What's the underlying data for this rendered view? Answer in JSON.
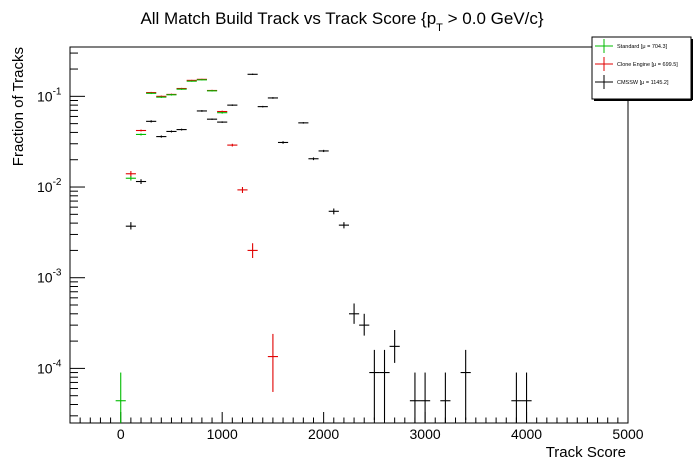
{
  "chart_data": {
    "type": "scatter",
    "title": {
      "main": "All Match Build Track vs Track Score {p",
      "subscript": "T",
      "rest": " > 0.0 GeV/c}"
    },
    "xlabel": "Track Score",
    "ylabel": "Fraction of Tracks",
    "xlim": [
      -500,
      5000
    ],
    "ylim": [
      2.5e-05,
      0.35
    ],
    "y_scale": "log",
    "grid": false,
    "legend_position": "top-right",
    "x_ticks": [
      "0",
      "1000",
      "2000",
      "3000",
      "4000",
      "5000"
    ],
    "y_ticks": [
      {
        "base": "10",
        "exp": "-1",
        "value": 0.1
      },
      {
        "base": "10",
        "exp": "-2",
        "value": 0.01
      },
      {
        "base": "10",
        "exp": "-3",
        "value": 0.001
      },
      {
        "base": "10",
        "exp": "-4",
        "value": 0.0001
      }
    ],
    "x_error": 50,
    "series": [
      {
        "name": "CMSSW",
        "legend": "CMSSW  [μ = 1145.2]",
        "color": "#000000",
        "points": [
          {
            "x": 100,
            "y": 0.0037,
            "lo": 0.0034,
            "hi": 0.0041
          },
          {
            "x": 200,
            "y": 0.0115,
            "lo": 0.0108,
            "hi": 0.0122
          },
          {
            "x": 300,
            "y": 0.053,
            "lo": 0.0515,
            "hi": 0.0545
          },
          {
            "x": 400,
            "y": 0.036,
            "lo": 0.035,
            "hi": 0.037
          },
          {
            "x": 500,
            "y": 0.041,
            "lo": 0.04,
            "hi": 0.042
          },
          {
            "x": 600,
            "y": 0.043,
            "lo": 0.042,
            "hi": 0.044
          },
          {
            "x": 800,
            "y": 0.069,
            "lo": 0.0675,
            "hi": 0.0705
          },
          {
            "x": 900,
            "y": 0.056,
            "lo": 0.055,
            "hi": 0.057
          },
          {
            "x": 1000,
            "y": 0.052,
            "lo": 0.051,
            "hi": 0.053
          },
          {
            "x": 1100,
            "y": 0.08,
            "lo": 0.0785,
            "hi": 0.0815
          },
          {
            "x": 1300,
            "y": 0.175,
            "lo": 0.172,
            "hi": 0.178
          },
          {
            "x": 1400,
            "y": 0.077,
            "lo": 0.0755,
            "hi": 0.0785
          },
          {
            "x": 1500,
            "y": 0.096,
            "lo": 0.094,
            "hi": 0.098
          },
          {
            "x": 1600,
            "y": 0.031,
            "lo": 0.03,
            "hi": 0.032
          },
          {
            "x": 1800,
            "y": 0.051,
            "lo": 0.05,
            "hi": 0.052
          },
          {
            "x": 1900,
            "y": 0.0205,
            "lo": 0.0198,
            "hi": 0.0212
          },
          {
            "x": 2000,
            "y": 0.025,
            "lo": 0.0243,
            "hi": 0.0257
          },
          {
            "x": 2100,
            "y": 0.0054,
            "lo": 0.005,
            "hi": 0.0058
          },
          {
            "x": 2200,
            "y": 0.0038,
            "lo": 0.0035,
            "hi": 0.0041
          },
          {
            "x": 2300,
            "y": 0.0004,
            "lo": 0.00031,
            "hi": 0.00052
          },
          {
            "x": 2400,
            "y": 0.0003,
            "lo": 0.00023,
            "hi": 0.0004
          },
          {
            "x": 2500,
            "y": 9e-05,
            "lo": 2.7e-05,
            "hi": 0.00016
          },
          {
            "x": 2600,
            "y": 9e-05,
            "lo": 2.7e-05,
            "hi": 0.00016
          },
          {
            "x": 2700,
            "y": 0.000175,
            "lo": 0.000115,
            "hi": 0.000265
          },
          {
            "x": 2900,
            "y": 4.4e-05,
            "lo": 1.5e-05,
            "hi": 9e-05
          },
          {
            "x": 3000,
            "y": 4.4e-05,
            "lo": 1.5e-05,
            "hi": 9e-05
          },
          {
            "x": 3200,
            "y": 4.4e-05,
            "lo": 1.5e-05,
            "hi": 9e-05
          },
          {
            "x": 3400,
            "y": 9e-05,
            "lo": 2.7e-05,
            "hi": 0.00016
          },
          {
            "x": 3900,
            "y": 4.4e-05,
            "lo": 1.5e-05,
            "hi": 9e-05
          },
          {
            "x": 4000,
            "y": 4.4e-05,
            "lo": 1.5e-05,
            "hi": 9e-05
          }
        ]
      },
      {
        "name": "Clone Engine",
        "legend": "Clone Engine  [μ = 699.5]",
        "color": "#e00000",
        "points": [
          {
            "x": 100,
            "y": 0.014,
            "lo": 0.013,
            "hi": 0.015
          },
          {
            "x": 200,
            "y": 0.042,
            "lo": 0.041,
            "hi": 0.043
          },
          {
            "x": 300,
            "y": 0.11,
            "lo": 0.108,
            "hi": 0.112
          },
          {
            "x": 400,
            "y": 0.1,
            "lo": 0.098,
            "hi": 0.102
          },
          {
            "x": 500,
            "y": 0.105,
            "lo": 0.103,
            "hi": 0.107
          },
          {
            "x": 600,
            "y": 0.122,
            "lo": 0.12,
            "hi": 0.124
          },
          {
            "x": 700,
            "y": 0.15,
            "lo": 0.148,
            "hi": 0.152
          },
          {
            "x": 800,
            "y": 0.154,
            "lo": 0.152,
            "hi": 0.156
          },
          {
            "x": 900,
            "y": 0.116,
            "lo": 0.114,
            "hi": 0.118
          },
          {
            "x": 1000,
            "y": 0.068,
            "lo": 0.0665,
            "hi": 0.0695
          },
          {
            "x": 1100,
            "y": 0.029,
            "lo": 0.028,
            "hi": 0.03
          },
          {
            "x": 1200,
            "y": 0.0093,
            "lo": 0.0086,
            "hi": 0.01
          },
          {
            "x": 1300,
            "y": 0.002,
            "lo": 0.00165,
            "hi": 0.0024
          },
          {
            "x": 1500,
            "y": 0.000135,
            "lo": 5.5e-05,
            "hi": 0.00024
          }
        ]
      },
      {
        "name": "Standard",
        "legend": "Standard  [μ = 704.3]",
        "color": "#00bb00",
        "points": [
          {
            "x": 0,
            "y": 4.4e-05,
            "lo": 1.5e-05,
            "hi": 9e-05
          },
          {
            "x": 100,
            "y": 0.0125,
            "lo": 0.0118,
            "hi": 0.0132
          },
          {
            "x": 200,
            "y": 0.038,
            "lo": 0.037,
            "hi": 0.039
          },
          {
            "x": 300,
            "y": 0.108,
            "lo": 0.106,
            "hi": 0.11
          },
          {
            "x": 400,
            "y": 0.098,
            "lo": 0.096,
            "hi": 0.1
          },
          {
            "x": 500,
            "y": 0.104,
            "lo": 0.102,
            "hi": 0.106
          },
          {
            "x": 600,
            "y": 0.12,
            "lo": 0.118,
            "hi": 0.122
          },
          {
            "x": 700,
            "y": 0.147,
            "lo": 0.145,
            "hi": 0.149
          },
          {
            "x": 800,
            "y": 0.152,
            "lo": 0.15,
            "hi": 0.154
          },
          {
            "x": 900,
            "y": 0.115,
            "lo": 0.113,
            "hi": 0.117
          },
          {
            "x": 1000,
            "y": 0.066,
            "lo": 0.0645,
            "hi": 0.0675
          }
        ]
      }
    ],
    "legend_order": [
      "Standard",
      "Clone Engine",
      "CMSSW"
    ]
  }
}
